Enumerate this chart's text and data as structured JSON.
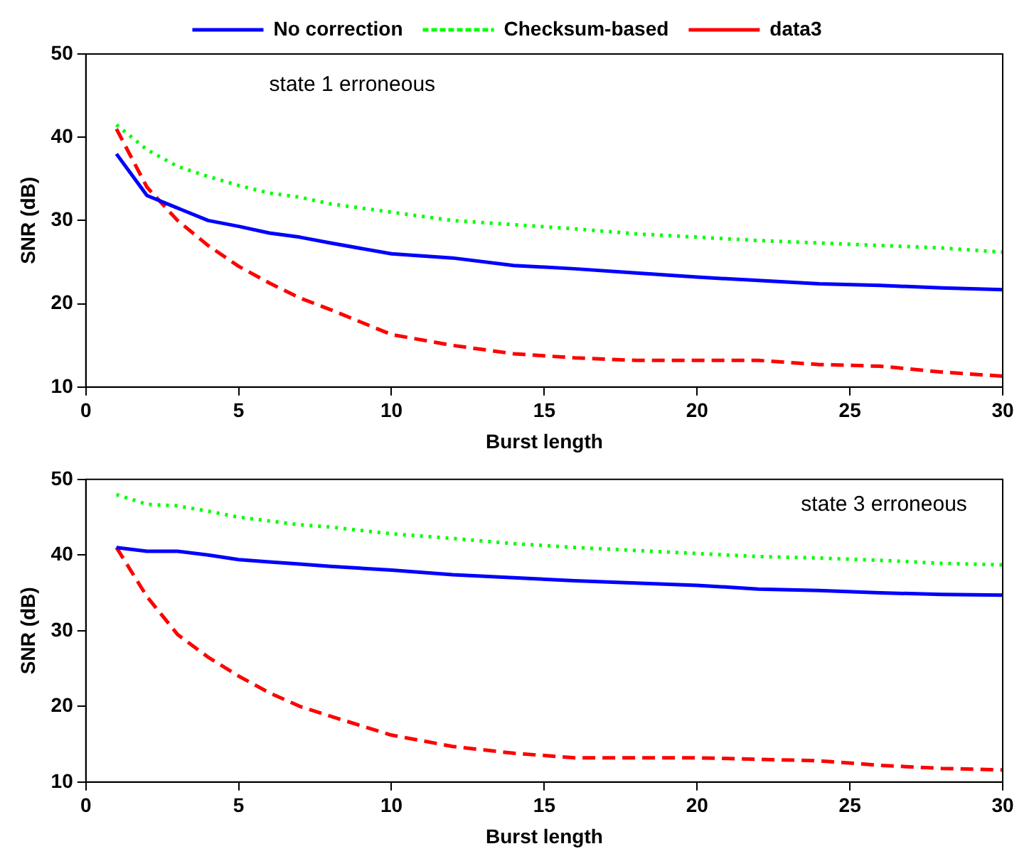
{
  "chart_data": [
    {
      "type": "line",
      "xlabel": "Burst length",
      "ylabel": "SNR (dB)",
      "annotations": [
        "state 1 erroneous"
      ],
      "x": [
        1,
        2,
        3,
        4,
        5,
        6,
        7,
        8,
        10,
        12,
        14,
        16,
        18,
        20,
        22,
        24,
        26,
        28,
        30
      ],
      "xlim": [
        0,
        30
      ],
      "xticks": [
        0,
        5,
        10,
        15,
        20,
        25,
        30
      ],
      "ylim": [
        10,
        50
      ],
      "yticks": [
        10,
        20,
        30,
        40,
        50
      ],
      "grid": false,
      "legend": "top",
      "marker": "none",
      "series": [
        {
          "name": "No correction",
          "color": "#0000ff",
          "line_style": "solid",
          "values": [
            38,
            33,
            31.5,
            30,
            29.3,
            28.5,
            28,
            27.3,
            26,
            25.5,
            24.6,
            24.2,
            23.7,
            23.2,
            22.8,
            22.4,
            22.2,
            21.9,
            21.7
          ]
        },
        {
          "name": "Checksum-based",
          "color": "#00ff00",
          "line_style": "dotted",
          "values": [
            41.5,
            38.5,
            36.5,
            35.3,
            34.2,
            33.3,
            32.8,
            32,
            31,
            30,
            29.5,
            29,
            28.4,
            28,
            27.6,
            27.3,
            27,
            26.7,
            26.2
          ]
        },
        {
          "name": "data3",
          "color": "#ff0000",
          "line_style": "dashed",
          "values": [
            41,
            34,
            30,
            27,
            24.5,
            22.5,
            20.7,
            19.3,
            16.3,
            15,
            14,
            13.5,
            13.2,
            13.2,
            13.2,
            12.7,
            12.5,
            11.8,
            11.3
          ]
        }
      ]
    },
    {
      "type": "line",
      "xlabel": "Burst length",
      "ylabel": "SNR (dB)",
      "annotations": [
        "state 3 erroneous"
      ],
      "x": [
        1,
        2,
        3,
        4,
        5,
        6,
        7,
        8,
        10,
        12,
        14,
        16,
        18,
        20,
        22,
        24,
        26,
        28,
        30
      ],
      "xlim": [
        0,
        30
      ],
      "xticks": [
        0,
        5,
        10,
        15,
        20,
        25,
        30
      ],
      "ylim": [
        10,
        50
      ],
      "yticks": [
        10,
        20,
        30,
        40,
        50
      ],
      "grid": false,
      "marker": "none",
      "series": [
        {
          "color": "#0000ff",
          "line_style": "solid",
          "values": [
            41,
            40.5,
            40.5,
            40,
            39.4,
            39.1,
            38.8,
            38.5,
            38,
            37.4,
            37,
            36.6,
            36.3,
            36,
            35.5,
            35.3,
            35,
            34.8,
            34.7
          ]
        },
        {
          "color": "#00ff00",
          "line_style": "dotted",
          "values": [
            48,
            46.7,
            46.5,
            45.8,
            45,
            44.5,
            44,
            43.7,
            42.8,
            42.2,
            41.5,
            41,
            40.6,
            40.2,
            39.8,
            39.6,
            39.3,
            38.9,
            38.7
          ]
        },
        {
          "color": "#ff0000",
          "line_style": "dashed",
          "values": [
            41,
            34.5,
            29.5,
            26.5,
            24,
            21.8,
            20,
            18.7,
            16.2,
            14.7,
            13.8,
            13.2,
            13.2,
            13.2,
            13,
            12.8,
            12.2,
            11.8,
            11.6
          ]
        }
      ]
    }
  ]
}
